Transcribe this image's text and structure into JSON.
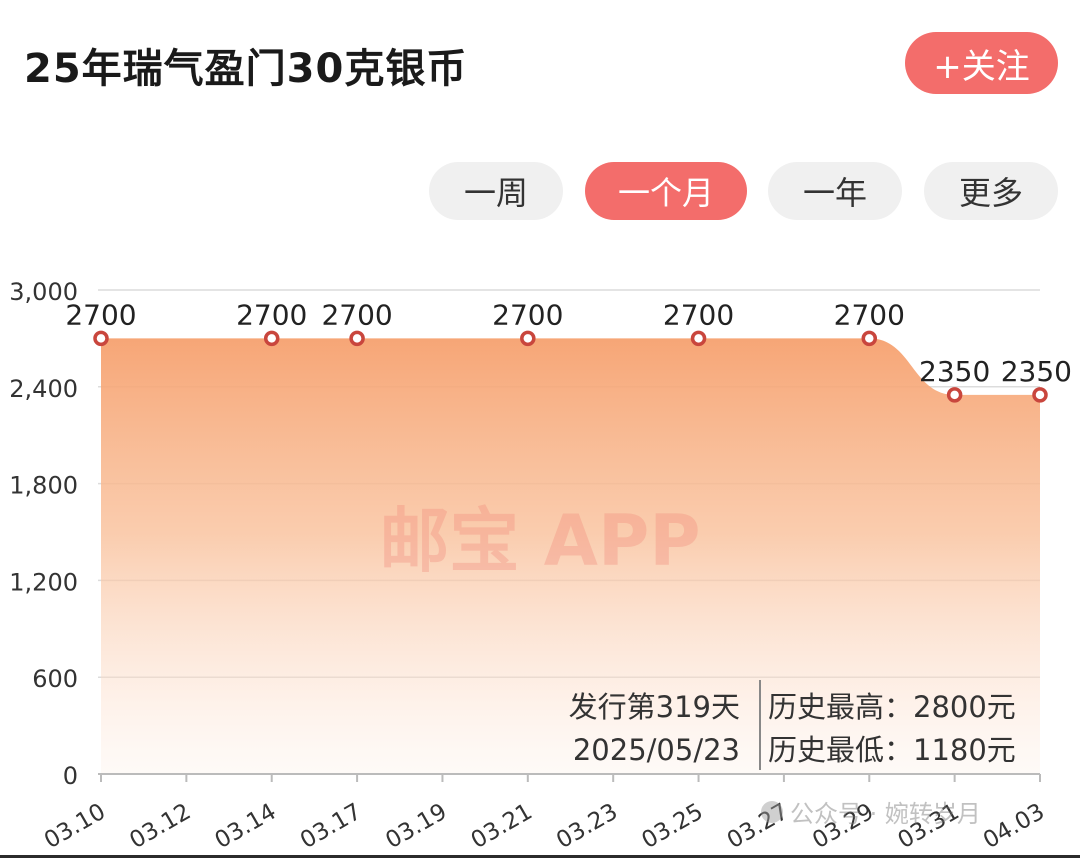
{
  "header": {
    "title": "25年瑞气盈门30克银币",
    "follow_label": "+关注"
  },
  "tabs": [
    {
      "label": "一周",
      "active": false
    },
    {
      "label": "一个月",
      "active": true
    },
    {
      "label": "一年",
      "active": false
    },
    {
      "label": "更多",
      "active": false
    }
  ],
  "colors": {
    "accent": "#f36d6b",
    "area_top": "#f6a16f",
    "marker": "#c9463d"
  },
  "chart_data": {
    "type": "area",
    "title": "",
    "xlabel": "",
    "ylabel": "",
    "ylim": [
      0,
      3000
    ],
    "y_ticks": [
      "0",
      "600",
      "1,200",
      "1,800",
      "2,400",
      "3,000"
    ],
    "y_tick_values": [
      0,
      600,
      1200,
      1800,
      2400,
      3000
    ],
    "x_tick_labels": [
      "03.10",
      "03.12",
      "03.14",
      "03.17",
      "03.19",
      "03.21",
      "03.23",
      "03.25",
      "03.27",
      "03.29",
      "03.31",
      "04.03"
    ],
    "series": [
      {
        "points": [
          {
            "tick": 0,
            "value": 2700,
            "label": "2700"
          },
          {
            "tick": 2,
            "value": 2700,
            "label": "2700"
          },
          {
            "tick": 3,
            "value": 2700,
            "label": "2700"
          },
          {
            "tick": 5,
            "value": 2700,
            "label": "2700"
          },
          {
            "tick": 7,
            "value": 2700,
            "label": "2700"
          },
          {
            "tick": 9,
            "value": 2700,
            "label": "2700"
          },
          {
            "tick": 10,
            "value": 2350,
            "label": "2350"
          },
          {
            "tick": 11,
            "value": 2350,
            "label": "2350"
          }
        ]
      }
    ],
    "watermark": "邮宝 APP",
    "info": {
      "issue_days": "发行第319天",
      "issue_date": "2025/05/23",
      "hist_high": "历史最高：2800元",
      "hist_low": "历史最低：1180元"
    },
    "source_watermark": "公众号 · 婉转岁月",
    "grid": true
  }
}
